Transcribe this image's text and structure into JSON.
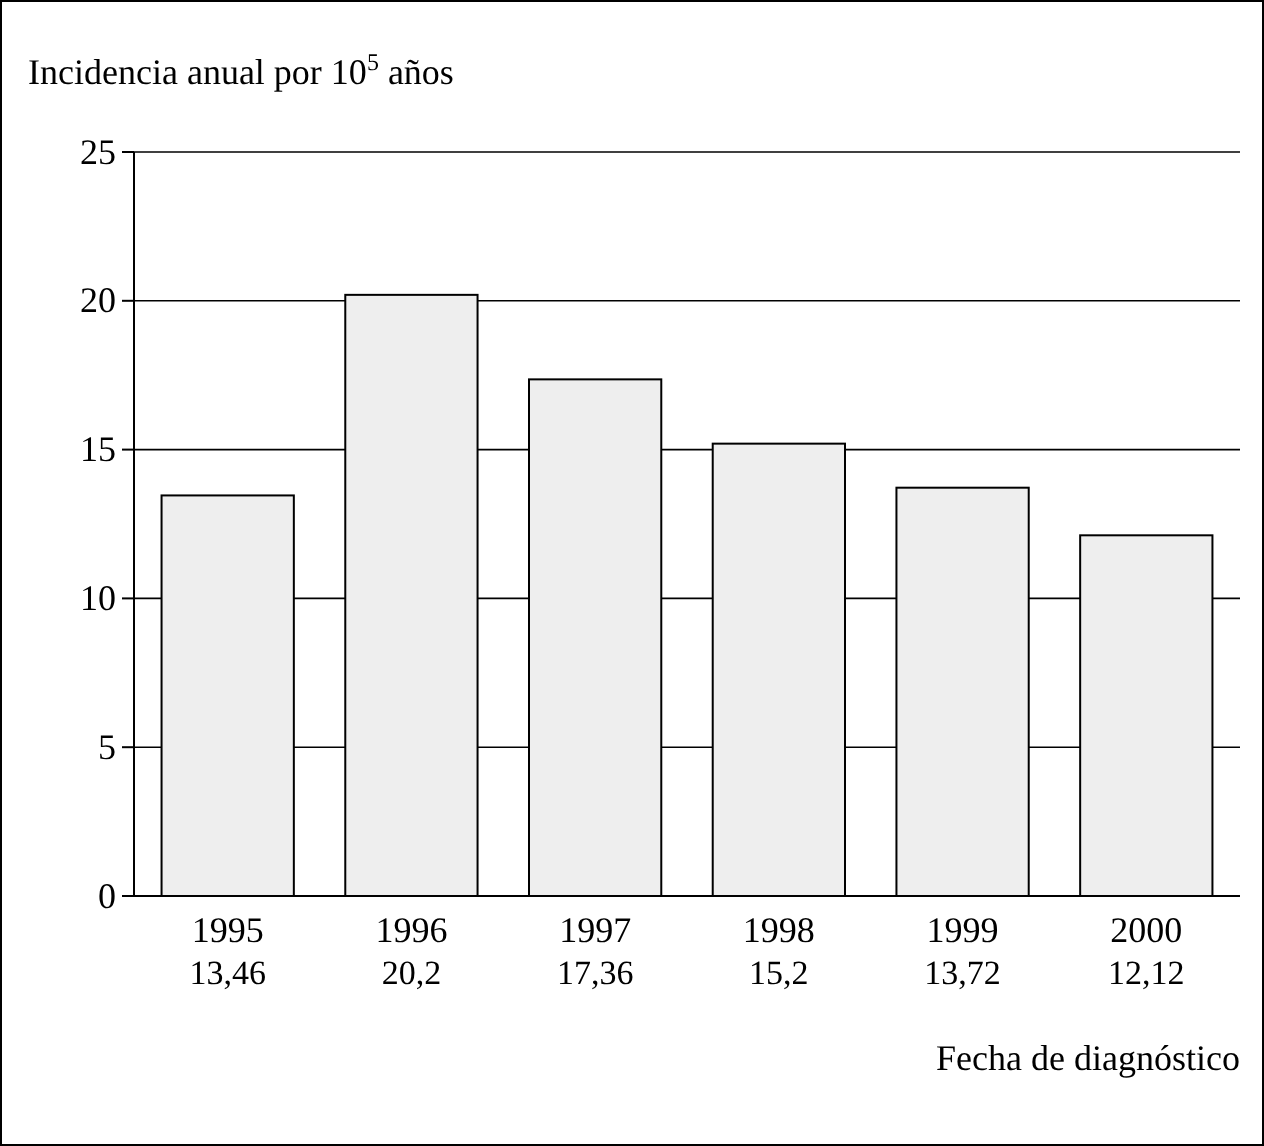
{
  "chart_data": {
    "type": "bar",
    "ylabel": "Incidencia anual por 10$^{5}$ años",
    "xlabel": "Fecha de diagnóstico",
    "categories": [
      "1995",
      "1996",
      "1997",
      "1998",
      "1999",
      "2000"
    ],
    "values": [
      13.46,
      20.2,
      17.36,
      15.2,
      13.72,
      12.12
    ],
    "value_labels": [
      "13,46",
      "20,2",
      "17,36",
      "15,2",
      "13,72",
      "12,12"
    ],
    "color": "#eeeeee",
    "ylim": [
      0,
      25
    ],
    "yticks": [
      0,
      5,
      10,
      15,
      20,
      25
    ],
    "grid": "y"
  }
}
